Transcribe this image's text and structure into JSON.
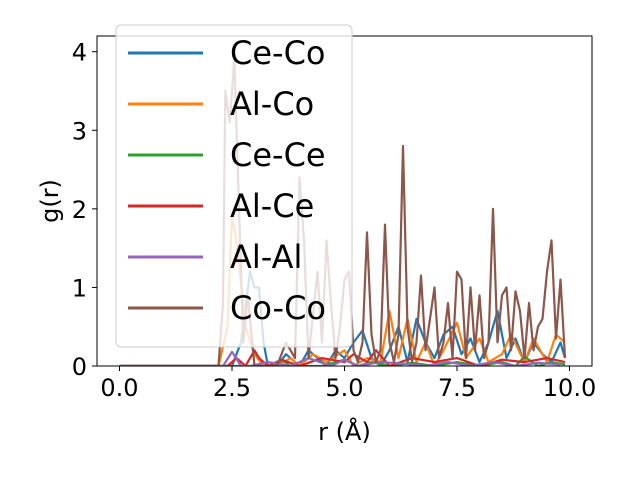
{
  "chart_data": {
    "type": "line",
    "title": "",
    "xlabel": "r (Å)",
    "ylabel": "g(r)",
    "xlim": [
      -0.5,
      10.5
    ],
    "ylim": [
      0,
      4.2
    ],
    "xticks": [
      0,
      2.5,
      5,
      7.5,
      10
    ],
    "xtick_labels": [
      "0.0",
      "2.5",
      "5.0",
      "7.5",
      "10.0"
    ],
    "yticks": [
      0,
      1,
      2,
      3,
      4
    ],
    "ytick_labels": [
      "0",
      "1",
      "2",
      "3",
      "4"
    ],
    "grid": false,
    "legend": {
      "location": "upper-left",
      "opaque": true
    },
    "series": [
      {
        "name": "Ce-Co",
        "color": "#1f77b4",
        "x": [
          0,
          2.0,
          2.5,
          2.7,
          2.9,
          3.0,
          3.1,
          3.2,
          3.3,
          3.5,
          3.7,
          4.0,
          4.2,
          4.4,
          4.6,
          4.8,
          5.0,
          5.2,
          5.4,
          5.6,
          5.8,
          6.0,
          6.2,
          6.4,
          6.6,
          6.8,
          7.0,
          7.2,
          7.4,
          7.6,
          7.8,
          8.0,
          8.2,
          8.4,
          8.6,
          8.8,
          9.0,
          9.2,
          9.4,
          9.6,
          9.8,
          9.9
        ],
        "y": [
          0,
          0,
          0,
          0.3,
          1.2,
          1.0,
          1.0,
          0.3,
          0,
          0,
          0.15,
          0,
          0.2,
          0.1,
          0,
          0.2,
          0.1,
          0.3,
          0.45,
          0.1,
          0,
          0.2,
          0.5,
          0.05,
          0.6,
          0.3,
          0.1,
          0.4,
          0.5,
          0.15,
          0.35,
          0.05,
          0.3,
          0.7,
          0.1,
          0.35,
          0.05,
          0.3,
          0.15,
          0.05,
          0.3,
          0.1
        ]
      },
      {
        "name": "Al-Co",
        "color": "#ff7f0e",
        "x": [
          0,
          2.2,
          2.4,
          2.5,
          2.6,
          2.8,
          3.0,
          3.2,
          3.5,
          3.8,
          4.0,
          4.3,
          4.6,
          5.0,
          5.2,
          5.5,
          5.8,
          6.0,
          6.2,
          6.4,
          6.6,
          6.8,
          7.0,
          7.2,
          7.5,
          7.7,
          8.0,
          8.2,
          8.5,
          8.7,
          9.0,
          9.2,
          9.5,
          9.7,
          9.9
        ],
        "y": [
          0,
          0,
          0.5,
          1.9,
          1.6,
          0.5,
          0.15,
          0,
          0,
          0.1,
          0,
          0.15,
          0.05,
          0.2,
          0,
          0.1,
          0.05,
          0.7,
          0.1,
          0.6,
          0.05,
          0.3,
          0,
          0.2,
          0.55,
          0.1,
          0.35,
          0.05,
          0.15,
          0.4,
          0.05,
          0.35,
          0.05,
          0.4,
          0.3
        ]
      },
      {
        "name": "Ce-Ce",
        "color": "#2ca02c",
        "x": [
          0,
          3.0,
          3.4,
          3.6,
          3.8,
          4.5,
          5.0,
          5.3,
          5.6,
          6.0,
          6.5,
          7.0,
          7.5,
          8.0,
          8.5,
          8.8,
          9.0,
          9.3,
          9.6,
          9.9
        ],
        "y": [
          0,
          0,
          0,
          0.08,
          0,
          0,
          0.08,
          0,
          0.05,
          0,
          0.04,
          0,
          0.05,
          0,
          0.05,
          0,
          0.12,
          0,
          0.05,
          0.02
        ]
      },
      {
        "name": "Al-Ce",
        "color": "#d62728",
        "x": [
          0,
          2.4,
          2.6,
          2.8,
          3.0,
          3.1,
          3.3,
          3.6,
          4.0,
          4.5,
          5.0,
          5.2,
          5.5,
          5.7,
          6.0,
          6.5,
          7.0,
          7.5,
          8.0,
          8.5,
          9.0,
          9.5,
          9.9
        ],
        "y": [
          0,
          0,
          0.1,
          0,
          0.2,
          0.1,
          0,
          0.08,
          0,
          0.1,
          0.05,
          0.15,
          0.05,
          0.2,
          0,
          0.1,
          0.05,
          0.1,
          0,
          0.08,
          0.05,
          0.1,
          0.05
        ]
      },
      {
        "name": "Al-Al",
        "color": "#9467bd",
        "x": [
          0,
          2.3,
          2.5,
          2.7,
          2.9,
          3.3,
          3.8,
          4.2,
          4.7,
          5.0,
          5.3,
          5.8,
          6.3,
          6.8,
          7.3,
          7.8,
          8.3,
          8.8,
          9.3,
          9.8
        ],
        "y": [
          0,
          0,
          0.18,
          0,
          0,
          0.05,
          0,
          0.1,
          0,
          0.08,
          0,
          0.05,
          0.03,
          0,
          0.05,
          0,
          0.05,
          0,
          0.04,
          0.02
        ]
      },
      {
        "name": "Co-Co",
        "color": "#8c564b",
        "x": [
          0,
          2.2,
          2.3,
          2.35,
          2.45,
          2.55,
          2.65,
          2.75,
          2.85,
          3.0,
          3.5,
          3.7,
          3.9,
          4.0,
          4.1,
          4.2,
          4.4,
          4.5,
          4.6,
          4.7,
          4.8,
          4.9,
          5.0,
          5.1,
          5.2,
          5.3,
          5.4,
          5.5,
          5.6,
          5.7,
          5.8,
          5.9,
          6.0,
          6.1,
          6.2,
          6.3,
          6.4,
          6.5,
          6.6,
          6.7,
          6.8,
          6.9,
          7.0,
          7.1,
          7.2,
          7.3,
          7.4,
          7.5,
          7.6,
          7.7,
          7.8,
          7.9,
          8.0,
          8.1,
          8.2,
          8.3,
          8.4,
          8.5,
          8.6,
          8.7,
          8.8,
          8.9,
          9.0,
          9.1,
          9.2,
          9.3,
          9.4,
          9.5,
          9.6,
          9.7,
          9.8,
          9.9
        ],
        "y": [
          0,
          0,
          0.8,
          3.5,
          3.1,
          3.9,
          2.1,
          0.3,
          0.9,
          0,
          0,
          0.3,
          0.1,
          2.4,
          1.6,
          0.1,
          1.2,
          0.3,
          1.6,
          0.8,
          0.1,
          0.5,
          1.1,
          1.2,
          0.2,
          0.05,
          0.3,
          1.7,
          0.4,
          0.05,
          0.2,
          1.8,
          0.3,
          0.05,
          0.4,
          2.8,
          0.5,
          0.05,
          0.3,
          1.15,
          0.2,
          0.6,
          1.0,
          0.1,
          0.3,
          0.8,
          0.1,
          1.2,
          1.1,
          0.1,
          1.0,
          0.2,
          0.9,
          0.1,
          0.3,
          2.0,
          0.3,
          0.9,
          1.0,
          0.2,
          0.95,
          0.7,
          0.1,
          0.8,
          0.2,
          0.5,
          0.6,
          1.2,
          1.6,
          0.35,
          1.1,
          0.1
        ]
      }
    ]
  }
}
